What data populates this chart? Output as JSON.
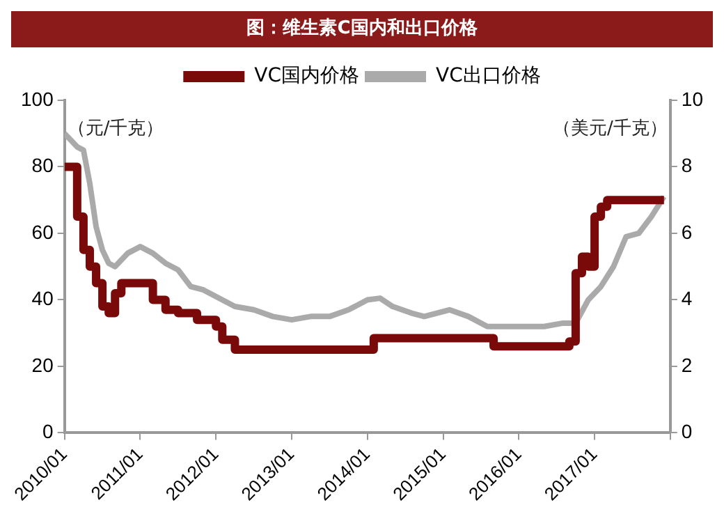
{
  "chart_data": {
    "type": "line",
    "title": "图：维生素C国内和出口价格",
    "ylabel": "（元/千克）",
    "y2label": "（美元/千克）",
    "xlim": [
      "2010-01",
      "2018-01"
    ],
    "xticks": [
      {
        "value": "2010-01",
        "label": "2010/01"
      },
      {
        "value": "2011-01",
        "label": "2011/01"
      },
      {
        "value": "2012-01",
        "label": "2012/01"
      },
      {
        "value": "2013-01",
        "label": "2013/01"
      },
      {
        "value": "2014-01",
        "label": "2014/01"
      },
      {
        "value": "2015-01",
        "label": "2015/01"
      },
      {
        "value": "2016-01",
        "label": "2016/01"
      },
      {
        "value": "2017-01",
        "label": "2017/01"
      },
      {
        "value": "2018-01",
        "label": null
      }
    ],
    "ylim": [
      0,
      100
    ],
    "yticks": [
      0,
      20,
      40,
      60,
      80,
      100
    ],
    "y2lim": [
      0,
      10
    ],
    "y2ticks": [
      0,
      2,
      4,
      6,
      8,
      10
    ],
    "grid": false,
    "legend": "top",
    "marker": "none",
    "line_style": "solid",
    "series": [
      {
        "name": "VC国内价格",
        "type": "step",
        "color": "#7a0a0a",
        "x": [
          "2010-01",
          "2010-03",
          "2010-04",
          "2010-05",
          "2010-06",
          "2010-07",
          "2010-08",
          "2010-09",
          "2010-10",
          "2011-03",
          "2011-05",
          "2011-07",
          "2011-10",
          "2012-01",
          "2012-02",
          "2012-04",
          "2014-02",
          "2015-09",
          "2016-09",
          "2016-10",
          "2016-11",
          "2016-12",
          "2017-01",
          "2017-02",
          "2017-03",
          "2017-12"
        ],
        "values": [
          80,
          65,
          55,
          50,
          45,
          38,
          36,
          42,
          45,
          40,
          37,
          36,
          34,
          32,
          28,
          25,
          28.5,
          26,
          27.5,
          48,
          53,
          50,
          65,
          68,
          70,
          70
        ]
      },
      {
        "name": "VC出口价格",
        "type": "line",
        "axis": "y2",
        "color": "#aaaaaa",
        "x": [
          "2010-01",
          "2010-03",
          "2010-04",
          "2010-05",
          "2010-06",
          "2010-07",
          "2010-08",
          "2010-09",
          "2010-11",
          "2011-01",
          "2011-03",
          "2011-05",
          "2011-07",
          "2011-09",
          "2011-11",
          "2012-01",
          "2012-04",
          "2012-07",
          "2012-10",
          "2013-01",
          "2013-04",
          "2013-07",
          "2013-10",
          "2014-01",
          "2014-03",
          "2014-05",
          "2014-08",
          "2014-10",
          "2014-12",
          "2015-02",
          "2015-05",
          "2015-08",
          "2015-11",
          "2016-02",
          "2016-05",
          "2016-08",
          "2016-10",
          "2016-12",
          "2017-02",
          "2017-04",
          "2017-06",
          "2017-08",
          "2017-10",
          "2017-12"
        ],
        "values": [
          9.0,
          8.6,
          8.5,
          7.5,
          6.2,
          5.5,
          5.1,
          5.0,
          5.4,
          5.6,
          5.4,
          5.1,
          4.9,
          4.4,
          4.3,
          4.1,
          3.8,
          3.7,
          3.5,
          3.4,
          3.5,
          3.5,
          3.7,
          4.0,
          4.05,
          3.8,
          3.6,
          3.5,
          3.6,
          3.7,
          3.5,
          3.2,
          3.2,
          3.2,
          3.2,
          3.3,
          3.3,
          4.0,
          4.4,
          5.0,
          5.9,
          6.0,
          6.5,
          7.1
        ]
      }
    ]
  }
}
